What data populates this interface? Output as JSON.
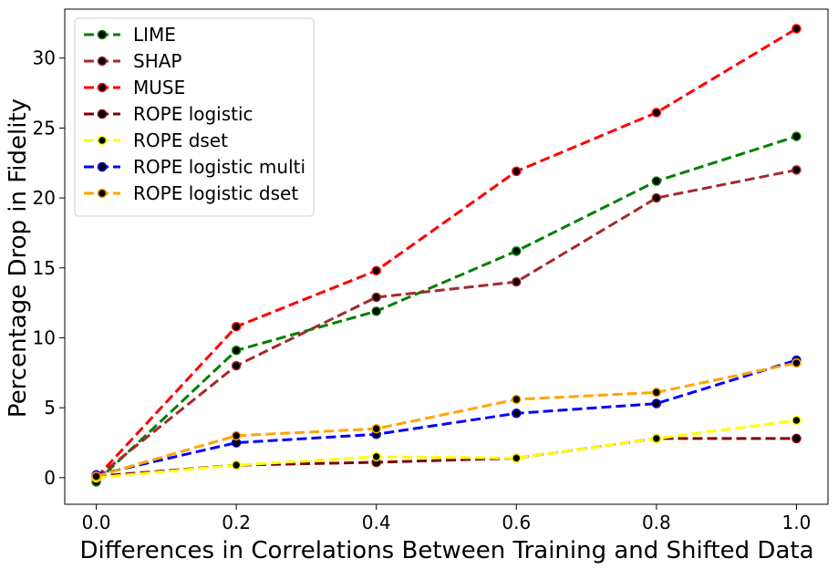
{
  "chart_data": {
    "type": "line",
    "title": "",
    "xlabel": "Differences in Correlations Between Training and Shifted Data",
    "ylabel": "Percentage Drop in Fidelity",
    "xlim": [
      -0.045,
      1.045
    ],
    "ylim": [
      -1.9,
      33.5
    ],
    "x_ticks": [
      "0.0",
      "0.2",
      "0.4",
      "0.6",
      "0.8",
      "1.0"
    ],
    "y_ticks": [
      "0",
      "5",
      "10",
      "15",
      "20",
      "25",
      "30"
    ],
    "grid": false,
    "legend_position": "upper-left",
    "x": [
      0.0,
      0.2,
      0.4,
      0.6,
      0.8,
      1.0
    ],
    "series": [
      {
        "name": "LIME",
        "color": "#008000",
        "values": [
          -0.3,
          9.1,
          11.9,
          16.2,
          21.2,
          24.4
        ]
      },
      {
        "name": "SHAP",
        "color": "#a52a2a",
        "values": [
          0.0,
          8.0,
          12.9,
          14.0,
          20.0,
          22.0
        ]
      },
      {
        "name": "MUSE",
        "color": "#ff0000",
        "values": [
          0.0,
          10.8,
          14.8,
          21.9,
          26.1,
          32.1
        ]
      },
      {
        "name": "ROPE logistic",
        "color": "#800000",
        "values": [
          0.1,
          0.9,
          1.1,
          1.4,
          2.8,
          2.8
        ]
      },
      {
        "name": "ROPE dset",
        "color": "#ffff00",
        "values": [
          0.0,
          0.9,
          1.5,
          1.4,
          2.8,
          4.1
        ]
      },
      {
        "name": "ROPE logistic multi",
        "color": "#0000ff",
        "values": [
          0.2,
          2.5,
          3.1,
          4.6,
          5.3,
          8.4
        ]
      },
      {
        "name": "ROPE logistic dset",
        "color": "#ffa500",
        "values": [
          0.1,
          3.0,
          3.5,
          5.6,
          6.1,
          8.2
        ]
      }
    ]
  }
}
